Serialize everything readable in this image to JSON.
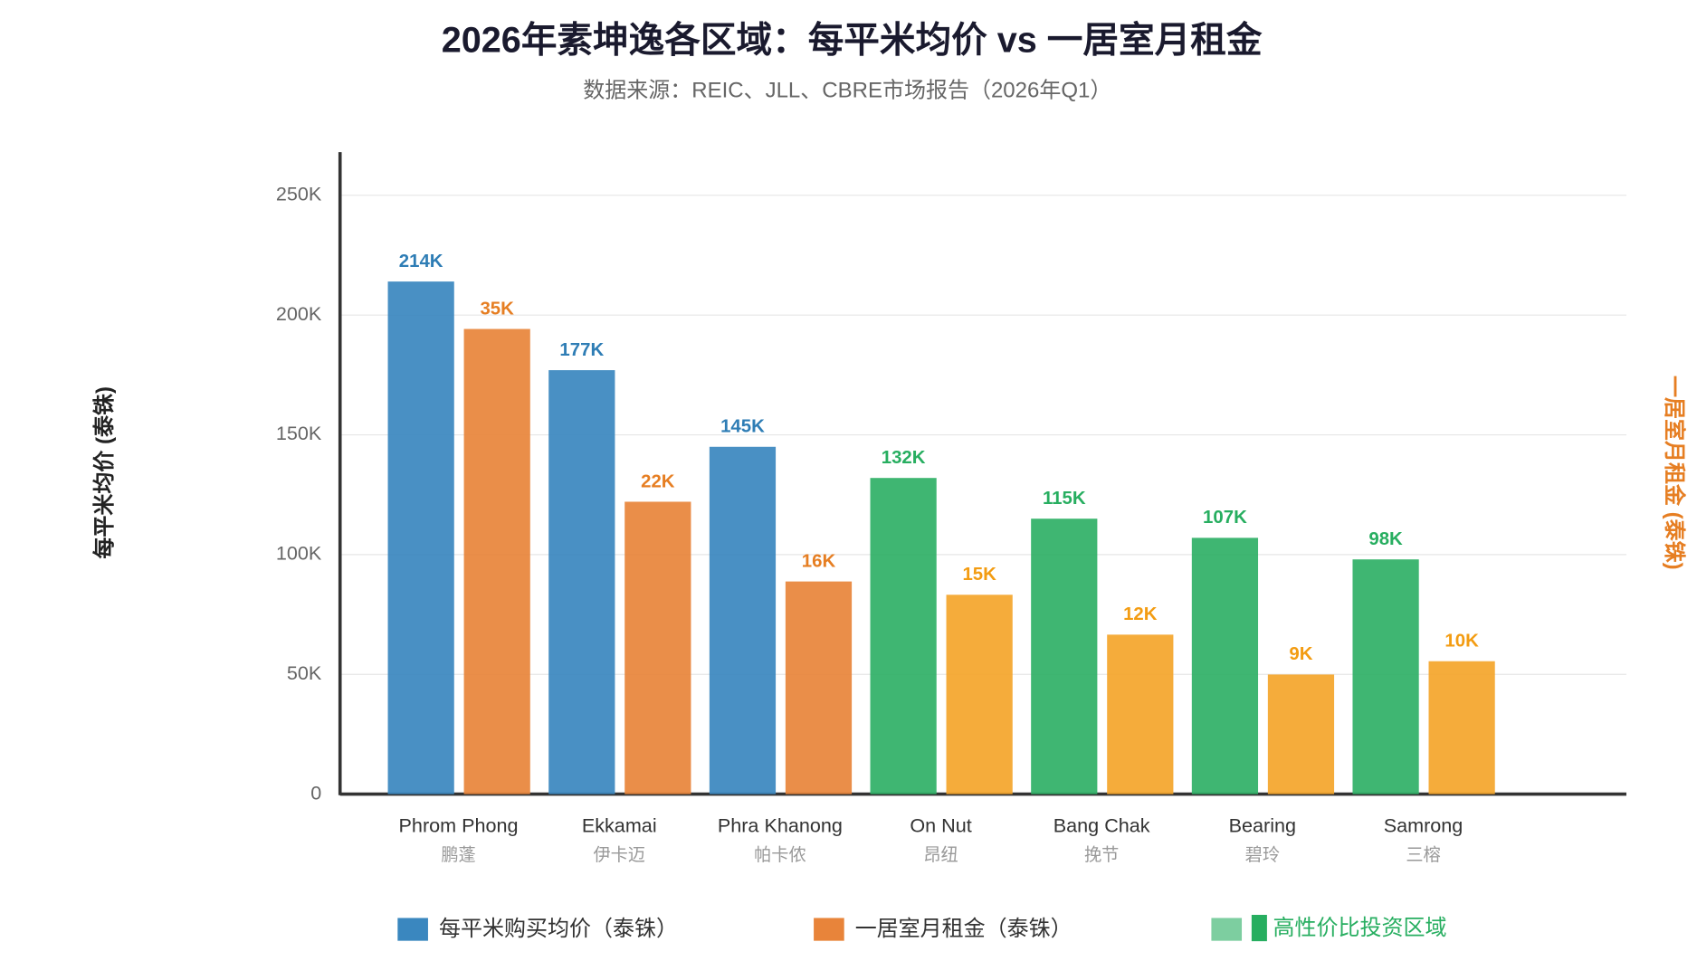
{
  "chart_data": {
    "type": "bar",
    "title": "2026年素坤逸各区域：每平米均价 vs 一居室月租金",
    "subtitle": "数据来源：REIC、JLL、CBRE市场报告（2026年Q1）",
    "y_label": "每平米均价 (泰铢)",
    "y2_label": "一居室月租金 (泰铢)",
    "categories": [
      "Phrom Phong",
      "Ekkamai",
      "Phra Khanong",
      "On Nut",
      "Bang Chak",
      "Bearing",
      "Samrong"
    ],
    "category_subtitles": [
      "鹏蓬",
      "伊卡迈",
      "帕卡侬",
      "昂纽",
      "挽节",
      "碧玲",
      "三榕"
    ],
    "series": [
      {
        "name": "每平米购买均价（泰铢）",
        "color": "#3a87bf",
        "colors": [
          "#3a87bf",
          "#3a87bf",
          "#3a87bf",
          "#2fb066",
          "#2fb066",
          "#2fb066",
          "#2fb066"
        ],
        "label_colors": [
          "#2e7db5",
          "#2e7db5",
          "#2e7db5",
          "#27ae60",
          "#27ae60",
          "#27ae60",
          "#27ae60"
        ],
        "values": [
          214000,
          177000,
          145000,
          132000,
          115000,
          107000,
          98000
        ],
        "value_labels": [
          "214K",
          "177K",
          "145K",
          "132K",
          "115K",
          "107K",
          "98K"
        ]
      },
      {
        "name": "一居室月租金（泰铢）",
        "color": "#e8843a",
        "axis": "y2",
        "colors": [
          "#e8843a",
          "#e8843a",
          "#e8843a",
          "#f4a52a",
          "#f4a52a",
          "#f4a52a",
          "#f4a52a"
        ],
        "label_colors": [
          "#e67e22",
          "#e67e22",
          "#e67e22",
          "#f39c12",
          "#f39c12",
          "#f39c12",
          "#f39c12"
        ],
        "values": [
          35000,
          22000,
          16000,
          15000,
          12000,
          9000,
          10000
        ],
        "value_labels": [
          "35K",
          "22K",
          "16K",
          "15K",
          "12K",
          "9K",
          "10K"
        ]
      }
    ],
    "highlight_legend": {
      "label": "█ 高性价比投资区域",
      "color": "#7dcea0",
      "text_color": "#27ae60"
    },
    "ylim": [
      0,
      268000
    ],
    "yticks": [
      0,
      {
        "value": 50000,
        "label": "50K"
      },
      {
        "value": 100000,
        "label": "100K"
      },
      {
        "value": 150000,
        "label": "150K"
      },
      {
        "value": 200000,
        "label": "200K"
      },
      {
        "value": 250000,
        "label": "250K"
      }
    ],
    "y2lim": [
      0,
      48300
    ],
    "grid": true
  }
}
